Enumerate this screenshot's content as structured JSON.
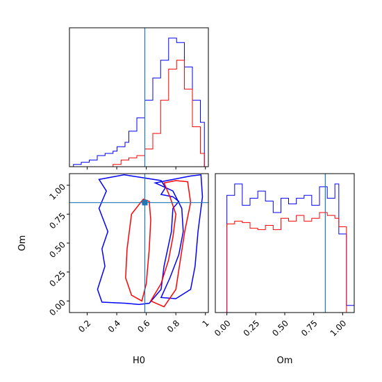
{
  "chart_data": [
    {
      "type": "histogram",
      "parameter": "H0",
      "xlim": [
        0.08,
        1.02
      ],
      "truth": 0.59,
      "ticks": [
        0.2,
        0.4,
        0.6,
        0.8,
        1.0
      ],
      "x_edges": [
        0.08,
        0.107,
        0.134,
        0.16,
        0.187,
        0.214,
        0.241,
        0.268,
        0.294,
        0.321,
        0.348,
        0.375,
        0.402,
        0.429,
        0.456,
        0.482,
        0.509,
        0.536,
        0.563,
        0.59,
        0.617,
        0.644,
        0.67,
        0.697,
        0.724,
        0.751,
        0.778,
        0.805,
        0.832,
        0.858,
        0.885,
        0.912,
        0.939,
        0.966,
        0.993,
        1.02
      ],
      "series": [
        {
          "color": "#0000ff",
          "values": [
            0,
            1,
            1,
            2,
            2,
            3,
            3,
            5,
            5,
            6,
            6,
            7,
            9,
            9,
            11,
            16,
            16,
            22,
            22,
            30,
            30,
            40,
            40,
            48,
            48,
            58,
            58,
            56,
            56,
            45,
            45,
            30,
            30,
            20,
            0
          ]
        },
        {
          "color": "#ff0000",
          "values": [
            0,
            0,
            0,
            0,
            0,
            0,
            0,
            0,
            0,
            0,
            0,
            1,
            1,
            3,
            3,
            4,
            4,
            5,
            5,
            8,
            8,
            15,
            15,
            30,
            30,
            44,
            44,
            48,
            48,
            35,
            35,
            18,
            18,
            6,
            0
          ]
        }
      ]
    },
    {
      "type": "contour",
      "parameters": [
        "H0",
        "Om"
      ],
      "xlabel": "H0",
      "ylabel": "Om",
      "xlim": [
        0.08,
        1.02
      ],
      "ylim": [
        -0.1,
        1.1
      ],
      "xticks": [
        0.2,
        0.4,
        0.6,
        0.8,
        1.0
      ],
      "yticks": [
        0.0,
        0.25,
        0.5,
        0.75,
        1.0
      ],
      "truth": [
        0.59,
        0.85
      ],
      "series": [
        {
          "color": "#0000ff",
          "contours": [
            [
              [
                0.28,
                1.05
              ],
              [
                0.45,
                1.09
              ],
              [
                0.6,
                1.06
              ],
              [
                0.7,
                1.04
              ],
              [
                0.73,
                0.98
              ],
              [
                0.7,
                0.92
              ],
              [
                0.78,
                0.9
              ],
              [
                0.82,
                0.86
              ],
              [
                0.78,
                0.8
              ],
              [
                0.77,
                0.6
              ],
              [
                0.72,
                0.3
              ],
              [
                0.7,
                0.1
              ],
              [
                0.62,
                -0.02
              ],
              [
                0.55,
                -0.03
              ],
              [
                0.46,
                -0.02
              ],
              [
                0.3,
                -0.01
              ],
              [
                0.27,
                0.1
              ],
              [
                0.32,
                0.3
              ],
              [
                0.3,
                0.45
              ],
              [
                0.34,
                0.6
              ],
              [
                0.28,
                0.8
              ],
              [
                0.33,
                0.95
              ],
              [
                0.28,
                1.05
              ]
            ],
            [
              [
                0.66,
                1.02
              ],
              [
                0.78,
                1.05
              ],
              [
                0.9,
                1.08
              ],
              [
                0.97,
                1.09
              ],
              [
                0.98,
                0.9
              ],
              [
                0.95,
                0.6
              ],
              [
                0.93,
                0.3
              ],
              [
                0.9,
                0.1
              ],
              [
                0.8,
                0.02
              ],
              [
                0.7,
                0.03
              ],
              [
                0.76,
                0.2
              ],
              [
                0.82,
                0.4
              ],
              [
                0.85,
                0.6
              ],
              [
                0.84,
                0.8
              ],
              [
                0.78,
                0.95
              ],
              [
                0.66,
                1.02
              ]
            ]
          ]
        },
        {
          "color": "#ff0000",
          "contours": [
            [
              [
                0.58,
                0.88
              ],
              [
                0.62,
                0.86
              ],
              [
                0.63,
                0.7
              ],
              [
                0.62,
                0.45
              ],
              [
                0.6,
                0.15
              ],
              [
                0.57,
                0.0
              ],
              [
                0.5,
                0.05
              ],
              [
                0.46,
                0.2
              ],
              [
                0.47,
                0.45
              ],
              [
                0.5,
                0.75
              ],
              [
                0.58,
                0.88
              ]
            ],
            [
              [
                0.72,
                1.02
              ],
              [
                0.8,
                1.04
              ],
              [
                0.88,
                1.03
              ],
              [
                0.9,
                0.85
              ],
              [
                0.86,
                0.6
              ],
              [
                0.83,
                0.35
              ],
              [
                0.8,
                0.1
              ],
              [
                0.72,
                -0.05
              ],
              [
                0.63,
                0.0
              ],
              [
                0.7,
                0.15
              ],
              [
                0.75,
                0.35
              ],
              [
                0.78,
                0.55
              ],
              [
                0.8,
                0.75
              ],
              [
                0.76,
                0.9
              ],
              [
                0.72,
                1.02
              ]
            ]
          ]
        }
      ]
    },
    {
      "type": "histogram",
      "parameter": "Om",
      "xlabel": "Om",
      "xlim": [
        -0.1,
        1.1
      ],
      "truth": 0.85,
      "ticks": [
        0.0,
        0.25,
        0.5,
        0.75,
        1.0
      ],
      "tick_labels": [
        "0.00",
        "0.25",
        "0.50",
        "0.75",
        "1.00"
      ],
      "x_edges": [
        -0.1,
        -0.033,
        0.0,
        0.067,
        0.133,
        0.2,
        0.267,
        0.333,
        0.4,
        0.467,
        0.533,
        0.6,
        0.667,
        0.733,
        0.8,
        0.867,
        0.933,
        0.967,
        1.033,
        1.1
      ],
      "series": [
        {
          "color": "#0000ff",
          "values": [
            0,
            0,
            82,
            90,
            75,
            80,
            85,
            78,
            70,
            80,
            76,
            80,
            82,
            75,
            88,
            80,
            90,
            55,
            5
          ]
        },
        {
          "color": "#ff0000",
          "values": [
            0,
            0,
            62,
            64,
            63,
            59,
            58,
            61,
            58,
            66,
            64,
            68,
            64,
            66,
            70,
            68,
            66,
            60,
            0
          ]
        }
      ]
    }
  ]
}
